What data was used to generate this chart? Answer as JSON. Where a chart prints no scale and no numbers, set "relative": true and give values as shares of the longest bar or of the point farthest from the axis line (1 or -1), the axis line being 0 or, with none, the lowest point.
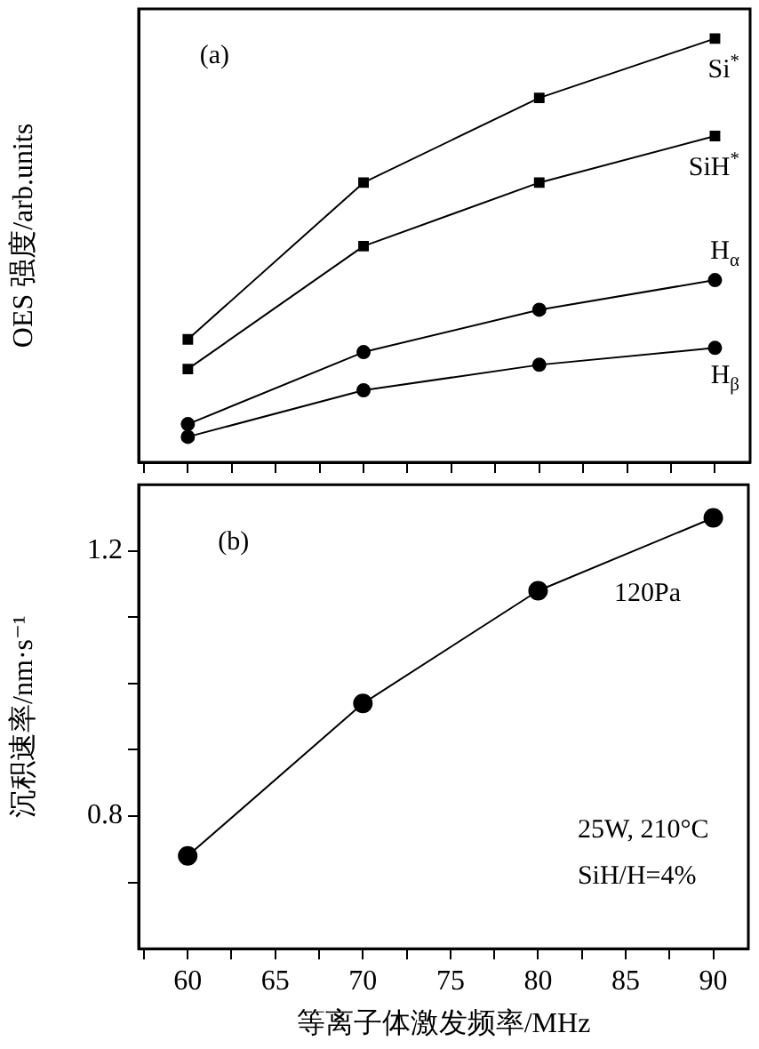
{
  "chart_data": [
    {
      "type": "line",
      "ylabel": "OES 强度/arb.units",
      "relative": true,
      "x": [
        60,
        70,
        80,
        90
      ],
      "xlim": [
        57.2,
        92
      ],
      "xticks": [
        {
          "value": 57.5,
          "label": null
        },
        60,
        {
          "value": 62.5,
          "label": null
        },
        65,
        {
          "value": 67.5,
          "label": null
        },
        70,
        {
          "value": 72.5,
          "label": null
        },
        75,
        {
          "value": 77.5,
          "label": null
        },
        80,
        {
          "value": 82.5,
          "label": null
        },
        85,
        {
          "value": 87.5,
          "label": null
        },
        90
      ],
      "tick_labels": false,
      "grid": false,
      "legend": "right",
      "line_style": "solid",
      "annotations": [
        "(a)"
      ],
      "series": [
        {
          "name": "Si$^{*}$",
          "color": "#000000",
          "marker": "square",
          "values": [
            0.29,
            0.66,
            0.86,
            1
          ]
        },
        {
          "name": "SiH$^{*}$",
          "color": "#000000",
          "marker": "square",
          "values": [
            0.22,
            0.51,
            0.66,
            0.77
          ]
        },
        {
          "name": "H$_{α}$",
          "color": "#000000",
          "marker": "circle",
          "values": [
            0.09,
            0.26,
            0.36,
            0.43
          ]
        },
        {
          "name": "H$_{β}$",
          "color": "#000000",
          "marker": "circle",
          "values": [
            0.06,
            0.17,
            0.23,
            0.27
          ]
        }
      ]
    },
    {
      "type": "line",
      "xlabel": "等离子体激发频率/MHz",
      "ylabel": "沉积速率/nm·s⁻¹",
      "x": [
        60,
        70,
        80,
        90
      ],
      "xlim": [
        57.2,
        92
      ],
      "xticks": [
        {
          "value": 57.5,
          "label": null
        },
        60,
        {
          "value": 62.5,
          "label": null
        },
        65,
        {
          "value": 67.5,
          "label": null
        },
        70,
        {
          "value": 72.5,
          "label": null
        },
        75,
        {
          "value": 77.5,
          "label": null
        },
        80,
        {
          "value": 82.5,
          "label": null
        },
        85,
        {
          "value": 87.5,
          "label": null
        },
        90
      ],
      "ylim": [
        0.6,
        1.3
      ],
      "yticks": [
        {
          "value": 0.7,
          "label": null
        },
        0.8,
        {
          "value": 0.9,
          "label": null
        },
        {
          "value": 1.0,
          "label": null
        },
        {
          "value": 1.1,
          "label": null
        },
        1.2
      ],
      "grid": false,
      "marker": "circle",
      "line_style": "solid",
      "annotations": [
        "(b)",
        "120Pa",
        "25W, 210°C",
        "SiH/H=4%"
      ],
      "series": [
        {
          "color": "#000000",
          "values": [
            0.74,
            0.97,
            1.14,
            1.25
          ]
        }
      ]
    }
  ]
}
